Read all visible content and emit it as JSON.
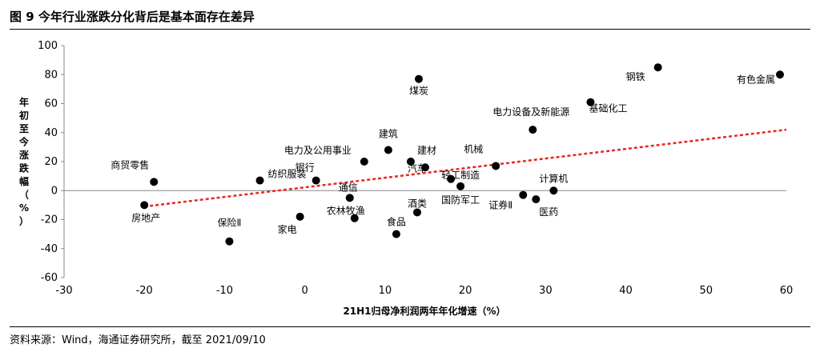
{
  "figure": {
    "title": "图 9  今年行业涨跌分化背后是基本面存在差异",
    "source": "资料来源：Wind，海通证券研究所，截至 2021/09/10"
  },
  "chart_data": {
    "type": "scatter",
    "xlabel": "21H1归母净利润两年年化增速（%）",
    "ylabel": "年初至今涨跌幅（%）",
    "xlim": [
      -30,
      60
    ],
    "ylim": [
      -60,
      100
    ],
    "xticks": [
      -30,
      -20,
      -10,
      0,
      10,
      20,
      30,
      40,
      50,
      60
    ],
    "yticks": [
      -60,
      -40,
      -20,
      0,
      20,
      40,
      60,
      80,
      100
    ],
    "grid": false,
    "marker_color": "#000000",
    "trendline": {
      "style": "dashed",
      "color": "#e8281e",
      "from": [
        -20,
        -11
      ],
      "to": [
        60,
        42
      ]
    },
    "points": [
      {
        "label": "钢铁",
        "x": 44,
        "y": 85
      },
      {
        "label": "有色金属",
        "x": 59.2,
        "y": 80
      },
      {
        "label": "煤炭",
        "x": 14.2,
        "y": 77
      },
      {
        "label": "基础化工",
        "x": 35.6,
        "y": 61
      },
      {
        "label": "电力设备及新能源",
        "x": 28.4,
        "y": 42
      },
      {
        "label": "建筑",
        "x": 10.4,
        "y": 28
      },
      {
        "label": "电力及公用事业",
        "x": 7.4,
        "y": 20
      },
      {
        "label": "建材",
        "x": 13.2,
        "y": 20
      },
      {
        "label": "机械",
        "x": 23.8,
        "y": 17
      },
      {
        "label": "汽车",
        "x": 15,
        "y": 16
      },
      {
        "label": "轻工制造",
        "x": 18.2,
        "y": 8
      },
      {
        "label": "国防军工",
        "x": 19.4,
        "y": 3
      },
      {
        "label": "银行",
        "x": 1.4,
        "y": 7
      },
      {
        "label": "纺织服装",
        "x": -5.6,
        "y": 7
      },
      {
        "label": "商贸零售",
        "x": -18.8,
        "y": 6
      },
      {
        "label": "通信",
        "x": 5.6,
        "y": -5
      },
      {
        "label": "计算机",
        "x": 31,
        "y": 0
      },
      {
        "label": "证券Ⅱ",
        "x": 27.2,
        "y": -3
      },
      {
        "label": "医药",
        "x": 28.8,
        "y": -6
      },
      {
        "label": "房地产",
        "x": -20,
        "y": -10
      },
      {
        "label": "酒类",
        "x": 14,
        "y": -15
      },
      {
        "label": "家电",
        "x": -0.6,
        "y": -18
      },
      {
        "label": "农林牧渔",
        "x": 6.2,
        "y": -19
      },
      {
        "label": "食品",
        "x": 11.4,
        "y": -30
      },
      {
        "label": "保险Ⅱ",
        "x": -9.4,
        "y": -35
      }
    ]
  }
}
